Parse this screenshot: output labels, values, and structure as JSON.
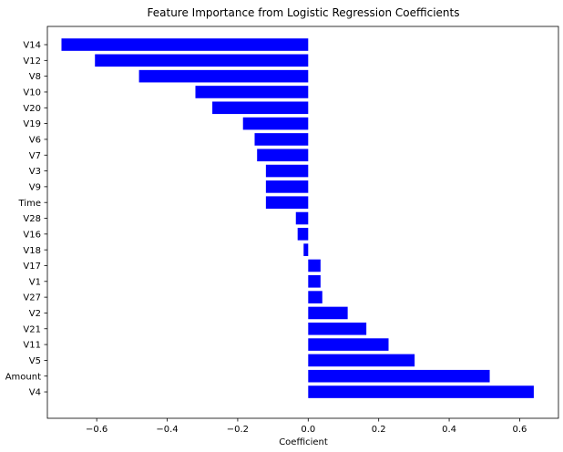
{
  "chart_data": {
    "type": "bar",
    "orientation": "horizontal",
    "title": "Feature Importance from Logistic Regression Coefficients",
    "xlabel": "Coefficient",
    "ylabel": "",
    "xlim": [
      -0.74,
      0.71
    ],
    "xticks": [
      -0.6,
      -0.4,
      -0.2,
      0.0,
      0.2,
      0.4,
      0.6
    ],
    "xtick_labels": [
      "−0.6",
      "−0.4",
      "−0.2",
      "0.0",
      "0.2",
      "0.4",
      "0.6"
    ],
    "grid": false,
    "bar_color": "#0000ff",
    "categories": [
      "V14",
      "V12",
      "V8",
      "V10",
      "V20",
      "V19",
      "V6",
      "V7",
      "V3",
      "V9",
      "Time",
      "V28",
      "V16",
      "V18",
      "V17",
      "V1",
      "V27",
      "V2",
      "V21",
      "V11",
      "V5",
      "Amount",
      "V4"
    ],
    "values": [
      -0.7,
      -0.605,
      -0.48,
      -0.32,
      -0.272,
      -0.185,
      -0.152,
      -0.145,
      -0.12,
      -0.12,
      -0.12,
      -0.035,
      -0.03,
      -0.013,
      0.035,
      0.035,
      0.04,
      0.112,
      0.165,
      0.228,
      0.302,
      0.515,
      0.64
    ]
  }
}
